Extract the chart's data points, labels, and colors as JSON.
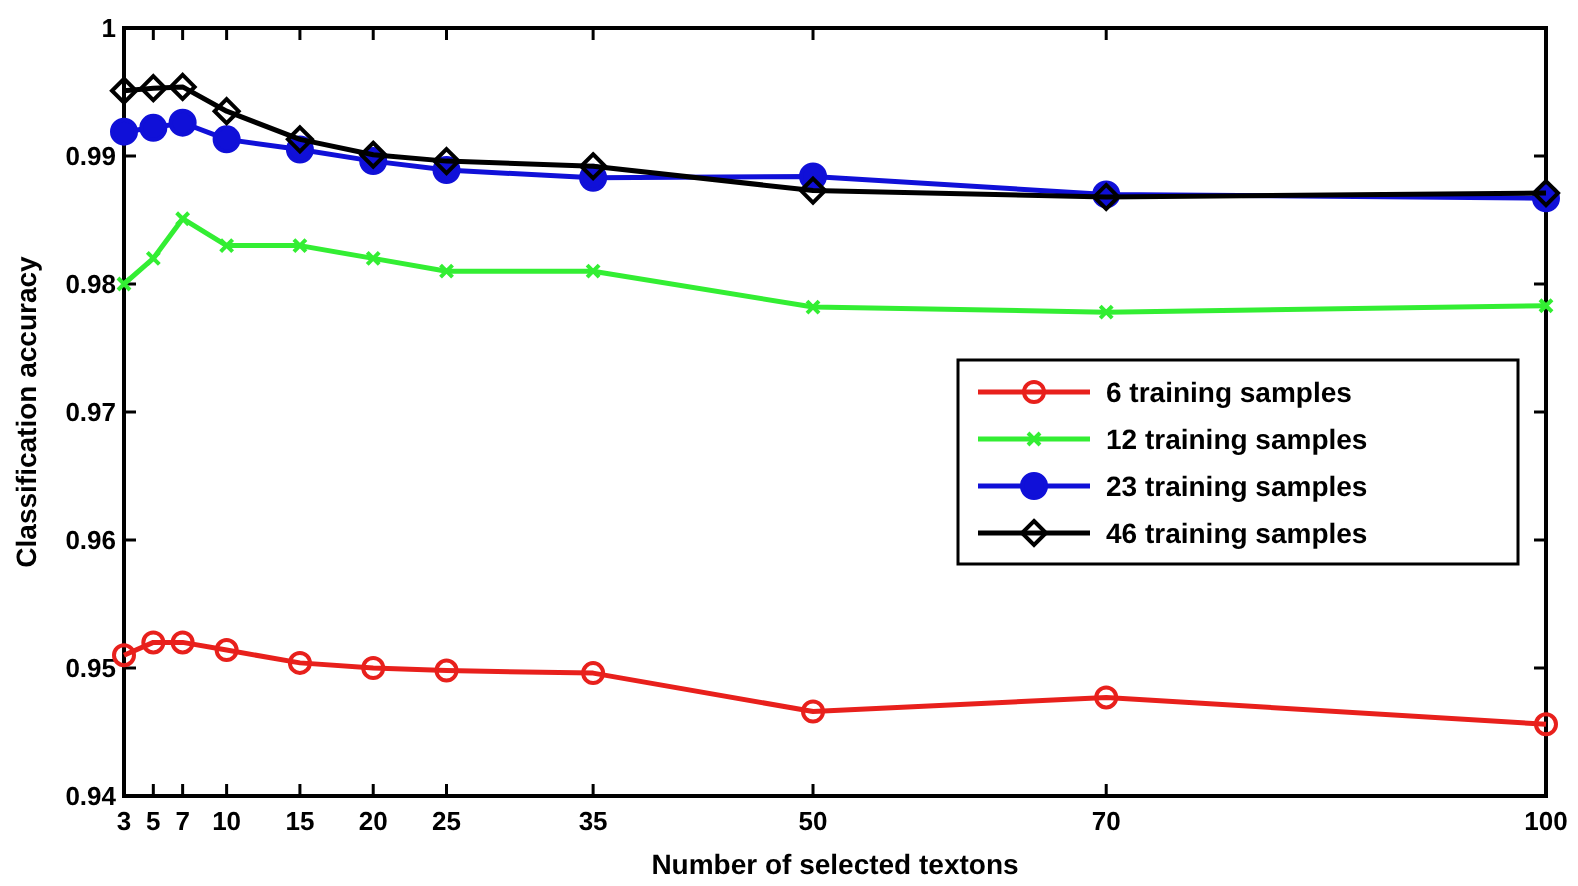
{
  "chart_data": {
    "type": "line",
    "xlabel": "Number of selected textons",
    "ylabel": "Classification accuracy",
    "x": [
      3,
      5,
      7,
      10,
      15,
      20,
      25,
      35,
      50,
      70,
      100
    ],
    "xlim": [
      3,
      100
    ],
    "xticks": [
      3,
      5,
      7,
      10,
      15,
      20,
      25,
      35,
      50,
      70,
      100
    ],
    "ylim": [
      0.94,
      1
    ],
    "yticks": [
      0.94,
      0.95,
      0.96,
      0.97,
      0.98,
      0.99,
      1
    ],
    "grid": false,
    "legend": "right",
    "series": [
      {
        "name": "6 training samples",
        "color": "#e8201c",
        "marker": "circle",
        "values": [
          0.951,
          0.952,
          0.952,
          0.9514,
          0.9504,
          0.95,
          0.9498,
          0.9496,
          0.9466,
          0.9477,
          0.9456
        ]
      },
      {
        "name": "12 training samples",
        "color": "#33ee33",
        "marker": "cross",
        "values": [
          0.98,
          0.982,
          0.9851,
          0.983,
          0.983,
          0.982,
          0.981,
          0.981,
          0.9782,
          0.9778,
          0.9783
        ]
      },
      {
        "name": "23 training samples",
        "color": "#1010d8",
        "marker": "circle",
        "values": [
          0.9919,
          0.9922,
          0.9926,
          0.9913,
          0.9905,
          0.9896,
          0.9889,
          0.9883,
          0.9884,
          0.987,
          0.9867
        ]
      },
      {
        "name": "46 training samples",
        "color": "#000000",
        "marker": "diamond",
        "values": [
          0.9951,
          0.9953,
          0.9954,
          0.9935,
          0.9913,
          0.9901,
          0.9896,
          0.9892,
          0.9873,
          0.9868,
          0.9871
        ]
      }
    ]
  }
}
